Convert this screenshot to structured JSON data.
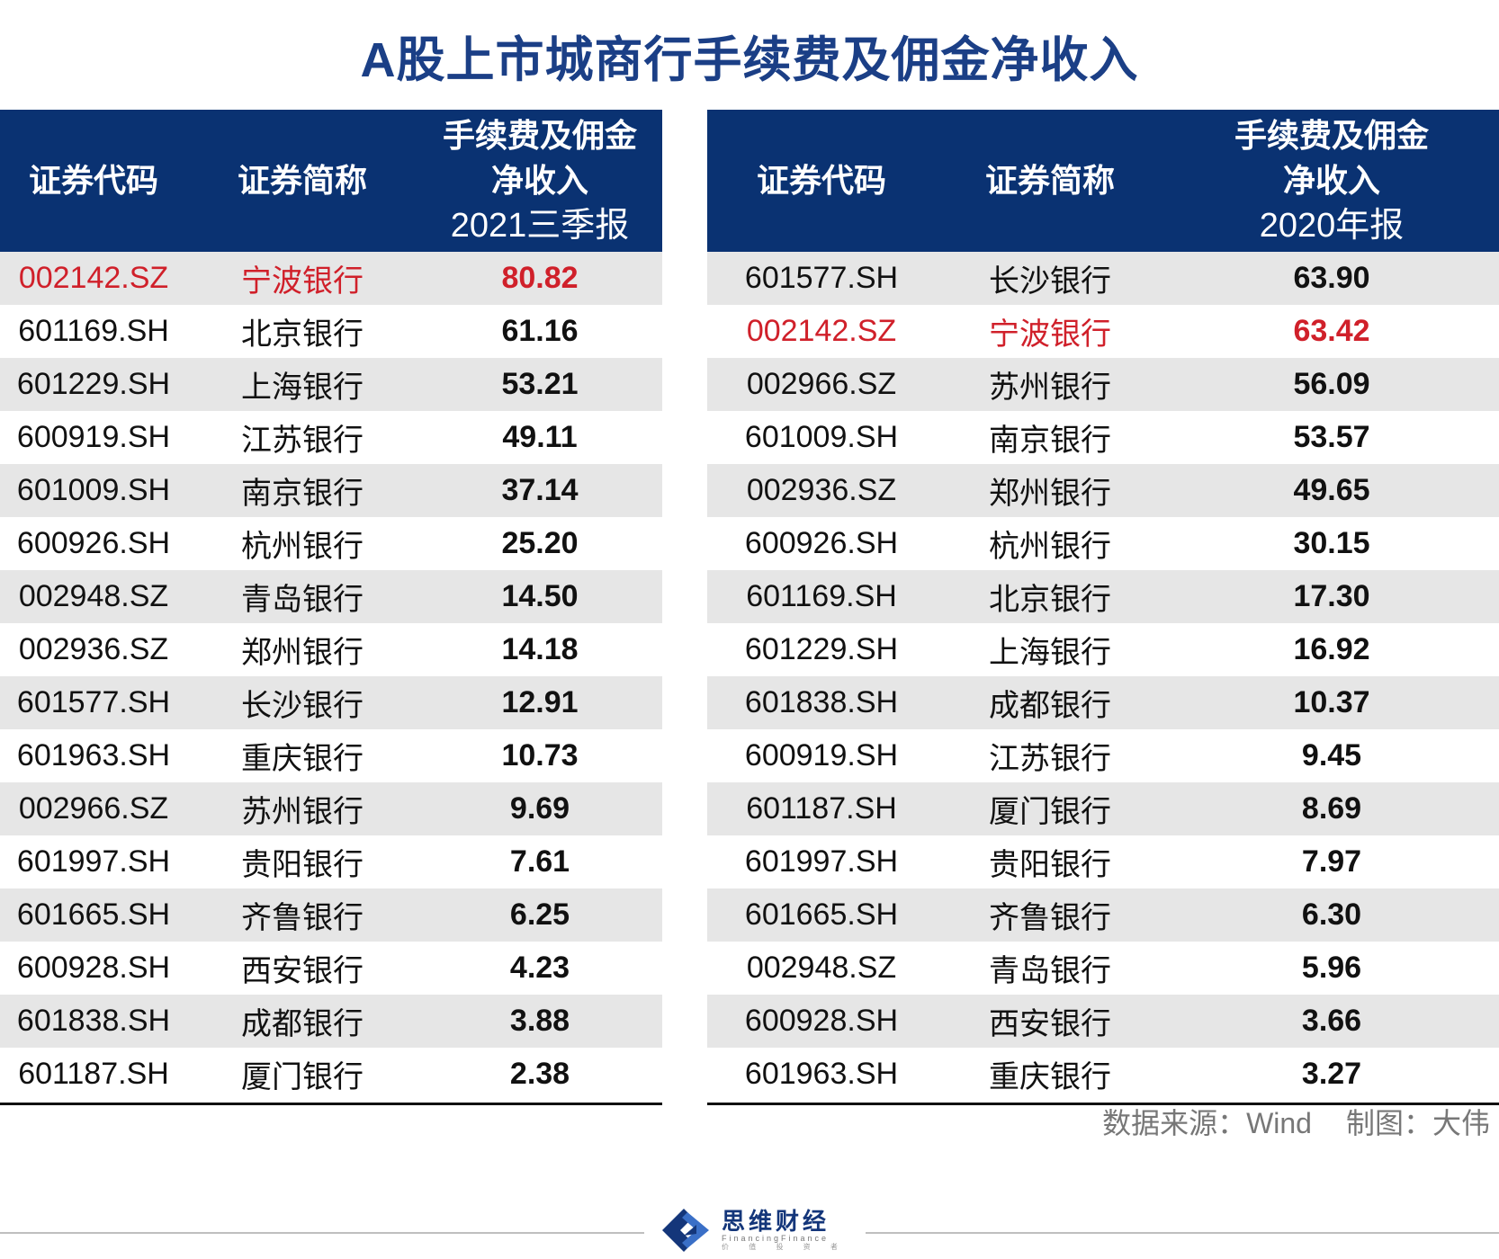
{
  "title": "A股上市城商行手续费及佣金净收入",
  "chart_data": [
    {
      "type": "table",
      "columns": [
        "证券代码",
        "证券简称",
        "手续费及佣金净收入"
      ],
      "period": "2021三季报",
      "rows": [
        {
          "code": "002142.SZ",
          "name": "宁波银行",
          "value": "80.82",
          "highlight": true
        },
        {
          "code": "601169.SH",
          "name": "北京银行",
          "value": "61.16"
        },
        {
          "code": "601229.SH",
          "name": "上海银行",
          "value": "53.21"
        },
        {
          "code": "600919.SH",
          "name": "江苏银行",
          "value": "49.11"
        },
        {
          "code": "601009.SH",
          "name": "南京银行",
          "value": "37.14"
        },
        {
          "code": "600926.SH",
          "name": "杭州银行",
          "value": "25.20"
        },
        {
          "code": "002948.SZ",
          "name": "青岛银行",
          "value": "14.50"
        },
        {
          "code": "002936.SZ",
          "name": "郑州银行",
          "value": "14.18"
        },
        {
          "code": "601577.SH",
          "name": "长沙银行",
          "value": "12.91"
        },
        {
          "code": "601963.SH",
          "name": "重庆银行",
          "value": "10.73"
        },
        {
          "code": "002966.SZ",
          "name": "苏州银行",
          "value": "9.69"
        },
        {
          "code": "601997.SH",
          "name": "贵阳银行",
          "value": "7.61"
        },
        {
          "code": "601665.SH",
          "name": "齐鲁银行",
          "value": "6.25"
        },
        {
          "code": "600928.SH",
          "name": "西安银行",
          "value": "4.23"
        },
        {
          "code": "601838.SH",
          "name": "成都银行",
          "value": "3.88"
        },
        {
          "code": "601187.SH",
          "name": "厦门银行",
          "value": "2.38"
        }
      ]
    },
    {
      "type": "table",
      "columns": [
        "证券代码",
        "证券简称",
        "手续费及佣金净收入"
      ],
      "period": "2020年报",
      "rows": [
        {
          "code": "601577.SH",
          "name": "长沙银行",
          "value": "63.90"
        },
        {
          "code": "002142.SZ",
          "name": "宁波银行",
          "value": "63.42",
          "highlight": true
        },
        {
          "code": "002966.SZ",
          "name": "苏州银行",
          "value": "56.09"
        },
        {
          "code": "601009.SH",
          "name": "南京银行",
          "value": "53.57"
        },
        {
          "code": "002936.SZ",
          "name": "郑州银行",
          "value": "49.65"
        },
        {
          "code": "600926.SH",
          "name": "杭州银行",
          "value": "30.15"
        },
        {
          "code": "601169.SH",
          "name": "北京银行",
          "value": "17.30"
        },
        {
          "code": "601229.SH",
          "name": "上海银行",
          "value": "16.92"
        },
        {
          "code": "601838.SH",
          "name": "成都银行",
          "value": "10.37"
        },
        {
          "code": "600919.SH",
          "name": "江苏银行",
          "value": "9.45"
        },
        {
          "code": "601187.SH",
          "name": "厦门银行",
          "value": "8.69"
        },
        {
          "code": "601997.SH",
          "name": "贵阳银行",
          "value": "7.97"
        },
        {
          "code": "601665.SH",
          "name": "齐鲁银行",
          "value": "6.30"
        },
        {
          "code": "002948.SZ",
          "name": "青岛银行",
          "value": "5.96"
        },
        {
          "code": "600928.SH",
          "name": "西安银行",
          "value": "3.66"
        },
        {
          "code": "601963.SH",
          "name": "重庆银行",
          "value": "3.27"
        }
      ]
    }
  ],
  "header_left": {
    "code": "证券代码",
    "name": "证券简称",
    "value_line1": "手续费及佣金",
    "value_line2": "净收入",
    "period": "2021三季报"
  },
  "header_right": {
    "code": "证券代码",
    "name": "证券简称",
    "value_line1": "手续费及佣金",
    "value_line2": "净收入",
    "period": "2020年报"
  },
  "source": "数据来源：Wind",
  "author": "制图：大伟",
  "brand": {
    "name": "思维财经",
    "sub": "FinancingFinance",
    "tagline": "价 值 投 资 者"
  },
  "colors": {
    "header_bg": "#0a3272",
    "title": "#1b3f86",
    "highlight": "#d0202a",
    "row_shade": "#e6e6e6",
    "brand": "#14367a"
  }
}
